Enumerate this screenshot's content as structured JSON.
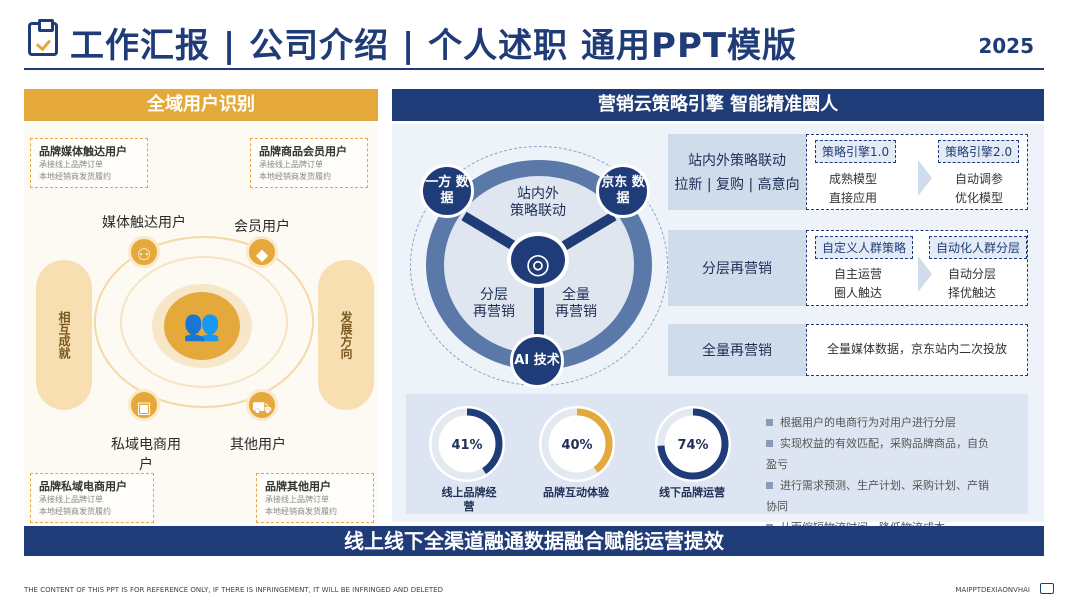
{
  "header": {
    "title": "工作汇报 | 公司介绍 | 个人述职 通用PPT模版",
    "year": "2025"
  },
  "left": {
    "header": "全域用户识别",
    "nodes": {
      "media": "媒体触达用户",
      "member": "会员用户",
      "private": "私域电商用户",
      "other": "其他用户"
    },
    "boxes": [
      {
        "title": "品牌媒体触达用户",
        "lines": [
          "承接线上品牌订单",
          "本地经销商发货履约"
        ]
      },
      {
        "title": "品牌商品会员用户",
        "lines": [
          "承接线上品牌订单",
          "本地经销商发货履约"
        ]
      },
      {
        "title": "品牌私域电商用户",
        "lines": [
          "承接线上品牌订单",
          "本地经销商发货履约"
        ]
      },
      {
        "title": "品牌其他用户",
        "lines": [
          "承接线上品牌订单",
          "本地经销商发货履约"
        ]
      }
    ],
    "arrows": {
      "left": "相互成就",
      "right": "发展方向"
    }
  },
  "right": {
    "header": "营销云策略引擎  智能精准圈人",
    "diagram": {
      "b1": "一方\n数据",
      "b2": "京东\n数据",
      "b3": "AI\n技术",
      "t_top": "站内外\n策略联动",
      "t_left": "分层\n再营销",
      "t_right": "全量\n再营销"
    },
    "strategies": [
      {
        "label": "站内外策略联动",
        "sub": "拉新 | 复购 | 高意向",
        "tag1": "策略引擎1.0",
        "text1": "成熟模型\n直接应用",
        "tag2": "策略引擎2.0",
        "text2": "自动调参\n优化模型"
      },
      {
        "label": "分层再营销",
        "sub": "",
        "tag1": "自定义人群策略",
        "text1": "自主运营\n圈人触达",
        "tag2": "自动化人群分层",
        "text2": "自动分层\n择优触达"
      },
      {
        "label": "全量再营销",
        "sub": "",
        "text": "全量媒体数据，京东站内二次投放"
      }
    ],
    "donuts": [
      {
        "value": "41%",
        "fraction": 0.41,
        "label": "线上品牌经\n营",
        "color": "#1f3c78"
      },
      {
        "value": "40%",
        "fraction": 0.4,
        "label": "品牌互动体验",
        "color": "#e5a83b"
      },
      {
        "value": "74%",
        "fraction": 0.74,
        "label": "线下品牌运营",
        "color": "#1f3c78"
      }
    ],
    "bullets": [
      "根据用户的电商行为对用户进行分层",
      "实现权益的有效匹配，采购品牌商品，自负\n盈亏",
      "进行需求预测、生产计划、采购计划、产销\n协同",
      "从而缩短物流时间、降低物流成本"
    ]
  },
  "banner": "线上线下全渠道融通数据融合赋能运营提效",
  "footer": {
    "left": "THE CONTENT OF THIS PPT IS FOR REFERENCE ONLY, IF THERE IS INFRINGEMENT, IT WILL BE INFRINGED AND DELETED",
    "right": "MAIPPTDEXIAONVHAI"
  }
}
